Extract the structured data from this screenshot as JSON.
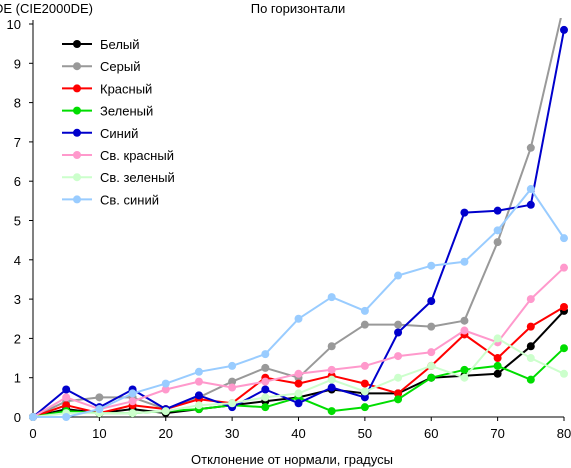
{
  "chart_data": {
    "type": "line",
    "title": "По горизонтали",
    "xlabel": "Отклонение от нормали, градусы",
    "ylabel": "DE (CIE2000DE)",
    "xlim": [
      0,
      80
    ],
    "ylim": [
      0,
      10
    ],
    "xticks": [
      0,
      10,
      20,
      30,
      40,
      50,
      60,
      70,
      80
    ],
    "yticks": [
      0,
      1,
      2,
      3,
      4,
      5,
      6,
      7,
      8,
      9,
      10
    ],
    "grid": false,
    "legend_position": "top-left",
    "x": [
      0,
      5,
      10,
      15,
      20,
      25,
      30,
      35,
      40,
      45,
      50,
      55,
      60,
      65,
      70,
      75,
      80
    ],
    "series": [
      {
        "name": "Белый",
        "color": "#000000",
        "values": [
          0.0,
          0.2,
          0.1,
          0.2,
          0.1,
          0.2,
          0.3,
          0.4,
          0.5,
          0.7,
          0.6,
          0.6,
          1.0,
          1.05,
          1.1,
          1.8,
          2.7
        ]
      },
      {
        "name": "Серый",
        "color": "#999999",
        "values": [
          0.0,
          0.4,
          0.5,
          0.5,
          0.2,
          0.5,
          0.9,
          1.25,
          1.0,
          1.8,
          2.35,
          2.35,
          2.3,
          2.45,
          4.45,
          6.85,
          10.5
        ]
      },
      {
        "name": "Красный",
        "color": "#ff0000",
        "values": [
          0.0,
          0.3,
          0.1,
          0.3,
          0.2,
          0.45,
          0.35,
          1.0,
          0.85,
          1.05,
          0.85,
          0.6,
          1.3,
          2.1,
          1.5,
          2.3,
          2.8
        ]
      },
      {
        "name": "Зеленый",
        "color": "#00dd00",
        "values": [
          0.0,
          0.15,
          0.1,
          0.1,
          0.15,
          0.2,
          0.3,
          0.25,
          0.5,
          0.15,
          0.25,
          0.45,
          1.0,
          1.2,
          1.3,
          0.95,
          1.75
        ]
      },
      {
        "name": "Синий",
        "color": "#0000cc",
        "values": [
          0.0,
          0.7,
          0.25,
          0.7,
          0.2,
          0.55,
          0.25,
          0.7,
          0.35,
          0.75,
          0.5,
          2.15,
          2.95,
          5.2,
          5.25,
          5.4,
          9.85
        ]
      },
      {
        "name": "Св. красный",
        "color": "#ff99cc",
        "values": [
          0.0,
          0.5,
          0.2,
          0.4,
          0.7,
          0.9,
          0.75,
          0.9,
          1.1,
          1.2,
          1.3,
          1.55,
          1.65,
          2.2,
          1.9,
          3.0,
          3.8
        ]
      },
      {
        "name": "Св. зеленый",
        "color": "#ccffcc",
        "values": [
          0.0,
          0.1,
          0.1,
          0.1,
          0.15,
          0.3,
          0.35,
          0.5,
          0.6,
          0.95,
          0.65,
          1.0,
          1.3,
          1.0,
          2.0,
          1.5,
          1.1
        ]
      },
      {
        "name": "Св. синий",
        "color": "#99ccff",
        "values": [
          0.0,
          0.0,
          0.2,
          0.6,
          0.85,
          1.15,
          1.3,
          1.6,
          2.5,
          3.05,
          2.7,
          3.6,
          3.85,
          3.95,
          4.75,
          5.8,
          4.55
        ]
      }
    ]
  }
}
